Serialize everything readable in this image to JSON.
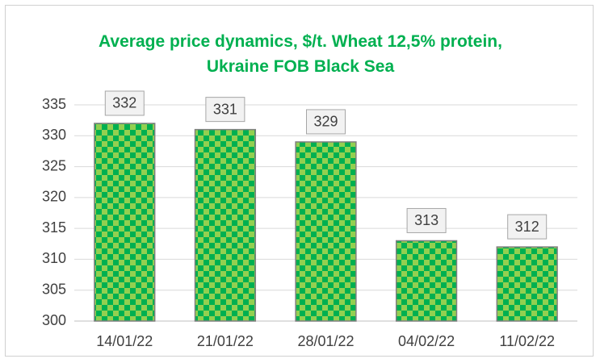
{
  "chart_data": {
    "type": "bar",
    "title": "Average price dynamics, $/t. Wheat 12,5% protein, Ukraine FOB Black Sea",
    "categories": [
      "14/01/22",
      "21/01/22",
      "28/01/22",
      "04/02/22",
      "11/02/22"
    ],
    "values": [
      332,
      331,
      329,
      313,
      312
    ],
    "color": "#00b050",
    "ylim": [
      300,
      335
    ],
    "yticks": [
      300,
      305,
      310,
      315,
      320,
      325,
      330,
      335
    ],
    "grid": true
  }
}
